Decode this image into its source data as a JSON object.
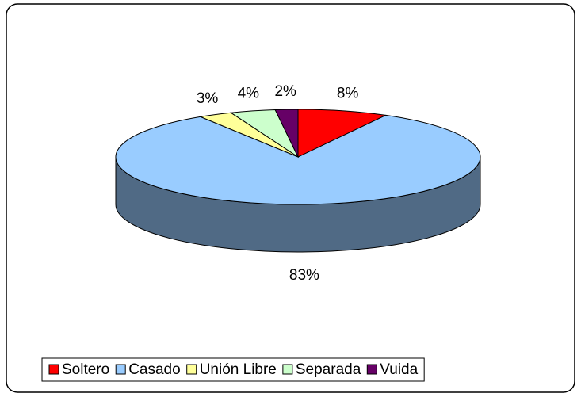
{
  "chart_data": {
    "type": "pie3d",
    "categories": [
      "Soltero",
      "Casado",
      "Unión Libre",
      "Separada",
      "Vuida"
    ],
    "values": [
      8,
      83,
      3,
      4,
      2
    ],
    "value_labels": [
      "8%",
      "83%",
      "3%",
      "4%",
      "2%"
    ],
    "colors": [
      "#ff0000",
      "#99ccff",
      "#ffff99",
      "#ccffcc",
      "#660066"
    ],
    "legend": "bottom"
  }
}
